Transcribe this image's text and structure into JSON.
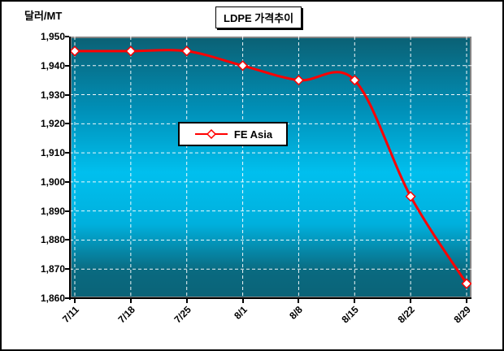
{
  "chart": {
    "title": "LDPE 가격추이",
    "y_axis_title": "달러/MT",
    "legend_label": "FE Asia"
  },
  "chart_data": {
    "type": "line",
    "title": "LDPE 가격추이",
    "ylabel": "달러/MT",
    "xlabel": "",
    "categories": [
      "7/11",
      "7/18",
      "7/25",
      "8/1",
      "8/8",
      "8/15",
      "8/22",
      "8/29"
    ],
    "series": [
      {
        "name": "FE Asia",
        "values": [
          1945,
          1945,
          1945,
          1940,
          1935,
          1935,
          1895,
          1865
        ],
        "color": "#ff0000",
        "marker": "diamond",
        "marker_fill": "#ffffff",
        "smooth": true
      }
    ],
    "ylim": [
      1860,
      1950
    ],
    "y_tick_step": 10,
    "y_tick_labels": [
      "1,950",
      "1,940",
      "1,930",
      "1,920",
      "1,910",
      "1,900",
      "1,890",
      "1,880",
      "1,870",
      "1,860"
    ],
    "grid": true,
    "gridline_color": "#ffffff",
    "gridline_style": "dashed",
    "legend_position": "center",
    "plot_bg_gradient": [
      "#0b6175",
      "#00bfee",
      "#0a6378"
    ]
  }
}
